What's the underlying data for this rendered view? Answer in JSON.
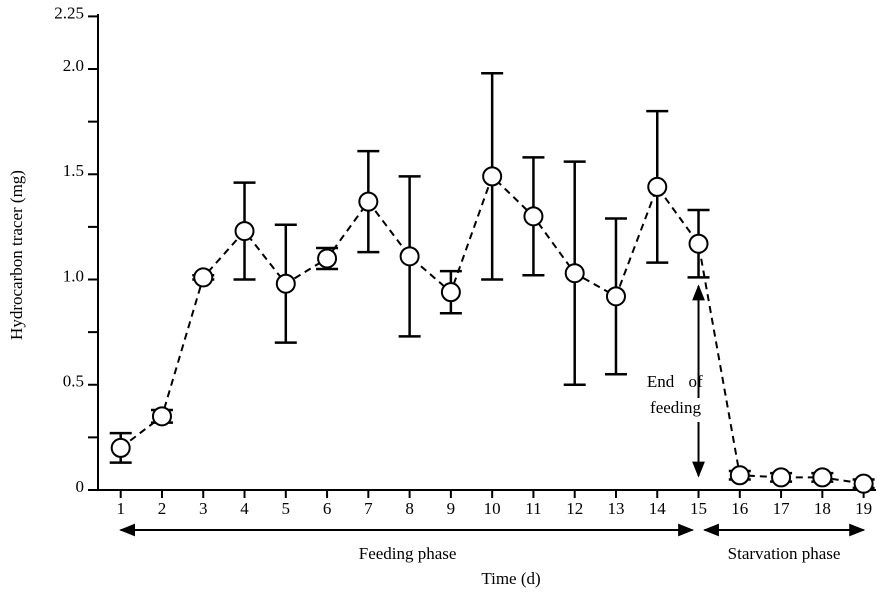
{
  "chart_data": {
    "type": "line",
    "y_label": "Hydrocarbon tracer (mg)",
    "x_label": "Time (d)",
    "x": [
      1,
      2,
      3,
      4,
      5,
      6,
      7,
      8,
      9,
      10,
      11,
      12,
      13,
      14,
      15,
      16,
      17,
      18,
      19
    ],
    "series": [
      {
        "color": "#000000",
        "values": [
          0.2,
          0.35,
          1.01,
          1.23,
          0.98,
          1.1,
          1.37,
          1.11,
          0.94,
          1.49,
          1.3,
          1.03,
          0.92,
          1.44,
          1.17,
          0.07,
          0.06,
          0.06,
          0.03
        ],
        "errors": [
          0.07,
          0.03,
          0.01,
          0.23,
          0.28,
          0.05,
          0.24,
          0.38,
          0.1,
          0.49,
          0.28,
          0.53,
          0.37,
          0.36,
          0.16,
          0.02,
          0.02,
          0.02,
          0.02
        ]
      }
    ],
    "xlim": [
      0.45,
      19.3
    ],
    "xticks": [
      1,
      2,
      3,
      4,
      5,
      6,
      7,
      8,
      9,
      10,
      11,
      12,
      13,
      14,
      15,
      16,
      17,
      18,
      19
    ],
    "ylim": [
      0,
      2.25
    ],
    "yticks": [
      0,
      0.5,
      {
        "value": 1,
        "label": "1.0"
      },
      1.5,
      {
        "value": 2,
        "label": "2.0"
      },
      2.25
    ],
    "yminor_ticks": [
      0.25,
      0.75,
      1.25,
      1.75
    ],
    "annotation": {
      "lines": [
        "End",
        "of",
        "feeding"
      ],
      "x": 15
    },
    "phases": [
      {
        "label": "Feeding phase",
        "start": 1,
        "end": 15
      },
      {
        "label": "Starvation phase",
        "start": 15,
        "end": 19
      }
    ]
  }
}
